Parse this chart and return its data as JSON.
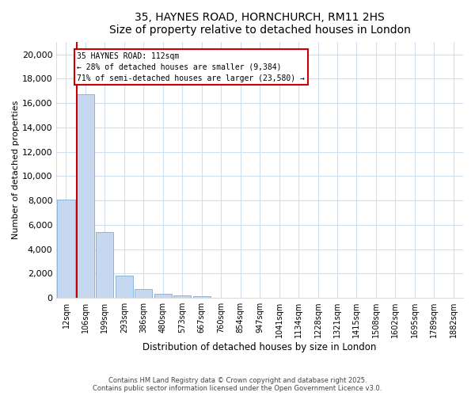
{
  "title1": "35, HAYNES ROAD, HORNCHURCH, RM11 2HS",
  "title2": "Size of property relative to detached houses in London",
  "xlabel": "Distribution of detached houses by size in London",
  "ylabel": "Number of detached properties",
  "bar_color": "#c5d8f0",
  "bar_edge_color": "#7aaed6",
  "annotation_box_color": "#cc0000",
  "property_line_color": "#cc0000",
  "annotation_text": "35 HAYNES ROAD: 112sqm\n← 28% of detached houses are smaller (9,384)\n71% of semi-detached houses are larger (23,580) →",
  "categories": [
    "12sqm",
    "106sqm",
    "199sqm",
    "293sqm",
    "386sqm",
    "480sqm",
    "573sqm",
    "667sqm",
    "760sqm",
    "854sqm",
    "947sqm",
    "1041sqm",
    "1134sqm",
    "1228sqm",
    "1321sqm",
    "1415sqm",
    "1508sqm",
    "1602sqm",
    "1695sqm",
    "1789sqm",
    "1882sqm"
  ],
  "values": [
    8100,
    16700,
    5400,
    1800,
    750,
    300,
    200,
    150,
    0,
    0,
    0,
    0,
    0,
    0,
    0,
    0,
    0,
    0,
    0,
    0,
    0
  ],
  "ylim": [
    0,
    21000
  ],
  "yticks": [
    0,
    2000,
    4000,
    6000,
    8000,
    10000,
    12000,
    14000,
    16000,
    18000,
    20000
  ],
  "prop_line_bar_index": 1,
  "footer1": "Contains HM Land Registry data © Crown copyright and database right 2025.",
  "footer2": "Contains public sector information licensed under the Open Government Licence v3.0.",
  "bg_color": "#ffffff",
  "grid_color": "#d0dff0"
}
